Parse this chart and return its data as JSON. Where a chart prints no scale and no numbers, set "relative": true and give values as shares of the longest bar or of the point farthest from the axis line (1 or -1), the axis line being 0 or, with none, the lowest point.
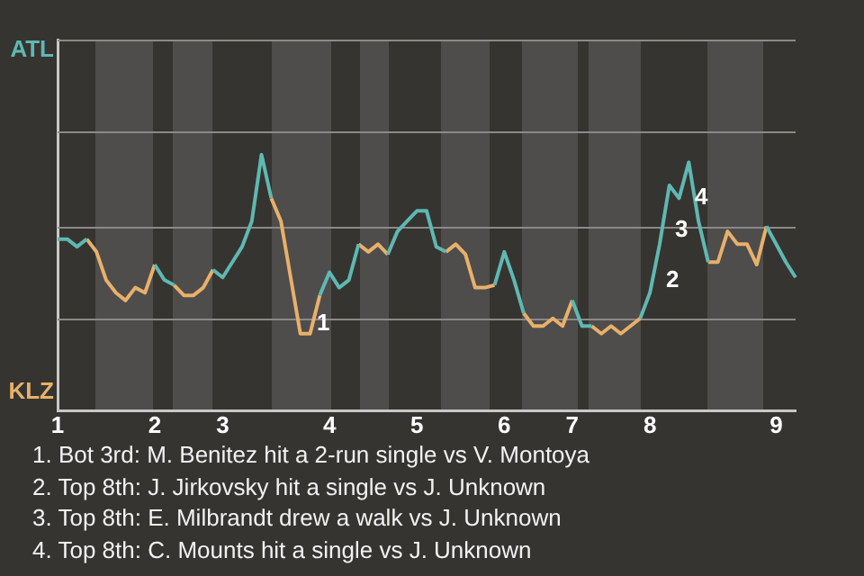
{
  "chart_data": {
    "type": "line",
    "relative": true,
    "categories": [
      "1",
      null,
      null,
      null,
      null,
      null,
      null,
      null,
      null,
      null,
      "2",
      null,
      null,
      null,
      null,
      null,
      null,
      "3",
      null,
      null,
      null,
      null,
      null,
      null,
      null,
      null,
      null,
      null,
      "4",
      null,
      null,
      null,
      null,
      null,
      null,
      null,
      null,
      "5",
      null,
      null,
      null,
      null,
      null,
      null,
      null,
      null,
      "6",
      null,
      null,
      null,
      null,
      null,
      null,
      "7",
      null,
      null,
      null,
      null,
      null,
      null,
      null,
      "8",
      null,
      null,
      null,
      null,
      null,
      null,
      null,
      null,
      null,
      null,
      null,
      null,
      "9",
      null,
      null
    ],
    "series": [
      {
        "color": "#5fb8b2",
        "values": [
          0.67,
          0.67,
          0.64,
          0.67,
          null,
          null,
          null,
          null,
          null,
          null,
          0.57,
          0.51,
          0.49,
          null,
          null,
          null,
          0.55,
          0.52,
          0.58,
          0.64,
          0.74,
          1,
          0.83,
          null,
          null,
          null,
          null,
          0.45,
          0.54,
          0.48,
          0.51,
          0.65,
          null,
          null,
          0.61,
          0.7,
          0.74,
          0.78,
          0.78,
          0.64,
          0.62,
          null,
          null,
          null,
          null,
          0.49,
          0.62,
          0.51,
          0.38,
          null,
          null,
          null,
          null,
          0.43,
          0.33,
          0.33,
          null,
          null,
          null,
          null,
          0.36,
          0.46,
          0.65,
          0.88,
          0.83,
          0.97,
          0.74,
          0.58,
          null,
          null,
          null,
          null,
          null,
          0.72,
          0.65,
          0.58,
          0.52
        ]
      },
      {
        "color": "#e8b06a",
        "values": [
          null,
          null,
          null,
          0.67,
          0.62,
          0.51,
          0.46,
          0.43,
          0.48,
          0.46,
          0.57,
          null,
          0.49,
          0.45,
          0.45,
          0.48,
          0.55,
          null,
          null,
          null,
          null,
          null,
          0.83,
          0.74,
          0.52,
          0.3,
          0.3,
          0.45,
          null,
          null,
          null,
          0.65,
          0.62,
          0.65,
          0.61,
          null,
          null,
          null,
          null,
          null,
          0.62,
          0.65,
          0.61,
          0.48,
          0.48,
          0.49,
          null,
          null,
          0.38,
          0.33,
          0.33,
          0.36,
          0.33,
          0.43,
          null,
          0.33,
          0.3,
          0.33,
          0.3,
          0.33,
          0.36,
          null,
          null,
          null,
          null,
          null,
          null,
          0.58,
          0.58,
          0.7,
          0.65,
          0.65,
          0.57,
          0.72,
          null,
          null,
          null
        ]
      }
    ],
    "legend": false,
    "ref_lines": [
      {
        "axis": "y",
        "value": 0.36,
        "color": "#8a8a8a"
      },
      {
        "axis": "y",
        "value": 0.72,
        "color": "#8a8a8a"
      },
      {
        "axis": "y",
        "value": 1.09,
        "color": "#8a8a8a"
      },
      {
        "axis": "y",
        "value": 1.45,
        "color": "#8a8a8a"
      }
    ],
    "marker": "none",
    "annotations": [
      "ATL",
      "KLZ",
      "1",
      "2",
      "3",
      "4",
      "1. Bot 3rd: M. Benitez hit a 2-run single vs V. Montoya",
      "2. Top 8th: J. Jirkovsky hit a single vs J. Unknown",
      "3. Top 8th: E. Milbrandt drew a walk vs J. Unknown",
      "4. Top 8th: C. Mounts hit a single vs J. Unknown"
    ]
  }
}
